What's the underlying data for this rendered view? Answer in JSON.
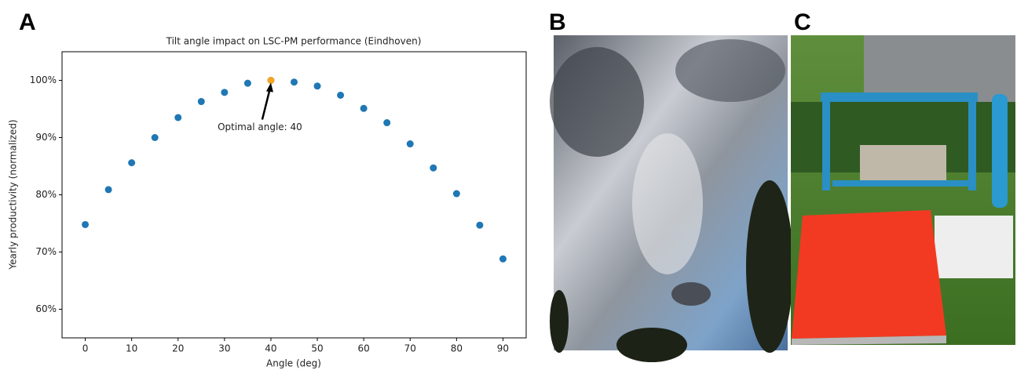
{
  "panel_labels": [
    "A",
    "B",
    "C"
  ],
  "chart_data": {
    "type": "scatter",
    "title": "Tilt angle impact on LSC-PM performance (Eindhoven)",
    "x_label": "Angle (deg)",
    "y_label": "Yearly productivity (normalized)",
    "series": [
      {
        "color": "#1f77b4",
        "x": [
          0,
          5,
          10,
          15,
          20,
          25,
          30,
          35,
          40,
          45,
          50,
          55,
          60,
          65,
          70,
          75,
          80,
          85,
          90
        ],
        "values": [
          74.8,
          80.9,
          85.6,
          90.0,
          93.5,
          96.3,
          97.9,
          99.5,
          100,
          99.7,
          99.0,
          97.4,
          95.1,
          92.6,
          88.9,
          84.7,
          80.2,
          74.7,
          68.8
        ]
      },
      {
        "color": "#f5a623",
        "x": [
          40
        ],
        "values": [
          100
        ]
      }
    ],
    "annotation": {
      "text": "Optimal angle: 40",
      "x": 40,
      "y": 100
    },
    "xlim": [
      -5,
      95
    ],
    "xticks": [
      0,
      10,
      20,
      30,
      40,
      50,
      60,
      70,
      80,
      90
    ],
    "ylim": [
      55,
      105
    ],
    "yticks": [
      {
        "value": 60,
        "label": "60%"
      },
      {
        "value": 70,
        "label": "70%"
      },
      {
        "value": 80,
        "label": "80%"
      },
      {
        "value": 90,
        "label": "90%"
      },
      {
        "value": 100,
        "label": "100%"
      }
    ]
  }
}
